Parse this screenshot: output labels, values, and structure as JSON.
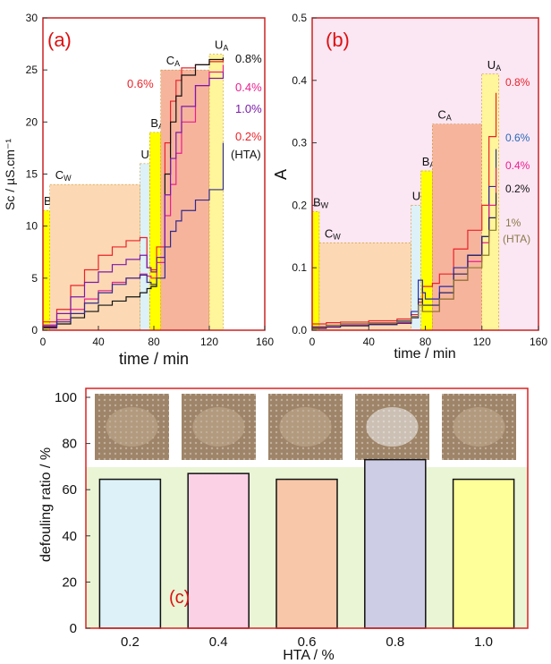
{
  "colors": {
    "panel_a_border": "#cc2222",
    "panel_b_border": "#cc2222",
    "panel_c_border": "#dd2222",
    "panel_b_bg": "#fbe6f3",
    "panel_c_bg": "#eaf5d6",
    "stage_yellow": "#ffff00",
    "stage_pale_yellow": "#fff59a",
    "stage_peach": "#fcd9b4",
    "stage_salmon": "#f7b49d",
    "stage_lightblue": "#ddf1f8",
    "panel_label": "#dd1111"
  },
  "chart_data": [
    {
      "id": "a",
      "type": "line",
      "panel_label": "(a)",
      "xlabel": "time / min",
      "ylabel": "Sc / µS.cm⁻¹",
      "xlim": [
        0,
        160
      ],
      "ylim": [
        0,
        30
      ],
      "xticks": [
        0,
        40,
        80,
        120,
        160
      ],
      "yticks": [
        0,
        5,
        10,
        15,
        20,
        25,
        30
      ],
      "stages": [
        {
          "label": "B",
          "sub": "W",
          "x0": 0,
          "x1": 5,
          "y": 11.5,
          "color": "stage_yellow"
        },
        {
          "label": "C",
          "sub": "W",
          "x0": 5,
          "x1": 70,
          "y": 14,
          "color": "stage_peach"
        },
        {
          "label": "U",
          "sub": "W",
          "x0": 70,
          "x1": 77,
          "y": 16,
          "color": "stage_lightblue"
        },
        {
          "label": "B",
          "sub": "A",
          "x0": 77,
          "x1": 85,
          "y": 19,
          "color": "stage_yellow"
        },
        {
          "label": "C",
          "sub": "A",
          "x0": 85,
          "x1": 120,
          "y": 25,
          "color": "stage_salmon"
        },
        {
          "label": "U",
          "sub": "A",
          "x0": 120,
          "x1": 130,
          "y": 26.5,
          "color": "stage_pale_yellow"
        }
      ],
      "series": [
        {
          "name": "0.6%",
          "color": "#e8232a",
          "x": [
            0,
            10,
            20,
            30,
            40,
            50,
            60,
            70,
            75,
            78,
            82,
            88,
            92,
            96,
            100,
            110,
            120,
            130
          ],
          "y": [
            0.8,
            2.0,
            4.3,
            5.8,
            7.2,
            8.0,
            8.6,
            8.9,
            6.0,
            5.8,
            8.0,
            18.0,
            22.0,
            24.0,
            25.2,
            25.5,
            25.8,
            26.0
          ]
        },
        {
          "name": "0.8%",
          "color": "#111111",
          "x": [
            0,
            10,
            20,
            30,
            40,
            50,
            60,
            70,
            75,
            78,
            82,
            88,
            92,
            96,
            100,
            110,
            120,
            130
          ],
          "y": [
            0.3,
            0.6,
            1.2,
            1.8,
            2.4,
            2.8,
            3.2,
            3.6,
            4.0,
            4.2,
            7.0,
            15.0,
            20.0,
            22.5,
            24.5,
            25.5,
            26.0,
            26.2
          ]
        },
        {
          "name": "0.4%",
          "color": "#e8208f",
          "x": [
            0,
            10,
            20,
            30,
            40,
            50,
            60,
            70,
            75,
            78,
            82,
            88,
            92,
            96,
            100,
            110,
            120,
            130
          ],
          "y": [
            0.4,
            1.0,
            2.0,
            3.0,
            3.8,
            4.6,
            5.0,
            5.4,
            5.2,
            5.0,
            6.5,
            11.0,
            14.0,
            17.0,
            20.0,
            23.5,
            24.8,
            25.5
          ]
        },
        {
          "name": "1.0%",
          "color": "#7a1aa8",
          "x": [
            0,
            10,
            20,
            30,
            40,
            50,
            60,
            70,
            75,
            78,
            82,
            88,
            92,
            96,
            100,
            110,
            120,
            130
          ],
          "y": [
            0.5,
            1.6,
            3.2,
            4.6,
            5.6,
            6.3,
            6.8,
            7.2,
            6.0,
            5.6,
            7.0,
            13.0,
            16.5,
            19.0,
            21.5,
            23.5,
            24.2,
            24.8
          ]
        },
        {
          "name": "0.2% (HTA)",
          "color": "#302a8a",
          "x": [
            0,
            10,
            20,
            30,
            40,
            50,
            60,
            70,
            75,
            78,
            82,
            88,
            92,
            96,
            100,
            110,
            120,
            130
          ],
          "y": [
            0.2,
            0.8,
            1.6,
            2.6,
            3.6,
            4.4,
            5.0,
            5.3,
            4.6,
            4.4,
            5.0,
            8.0,
            9.5,
            10.5,
            11.5,
            12.5,
            13.5,
            18.0
          ]
        }
      ],
      "annotations": [
        {
          "text": "0.8%",
          "color": "#111111"
        },
        {
          "text": "0.6%",
          "color": "#e8232a"
        },
        {
          "text": "0.4%",
          "color": "#e8208f"
        },
        {
          "text": "1.0%",
          "color": "#7a1aa8"
        },
        {
          "text": "0.2%",
          "color": "#e8232a"
        },
        {
          "text": "(HTA)",
          "color": "#111111"
        }
      ]
    },
    {
      "id": "b",
      "type": "line",
      "panel_label": "(b)",
      "xlabel": "time / min",
      "ylabel": "A",
      "xlim": [
        0,
        160
      ],
      "ylim": [
        0,
        0.5
      ],
      "xticks": [
        0,
        40,
        80,
        120,
        160
      ],
      "yticks": [
        0.0,
        0.1,
        0.2,
        0.3,
        0.4,
        0.5
      ],
      "stages": [
        {
          "label": "B",
          "sub": "W",
          "x0": 0,
          "x1": 5,
          "y": 0.19,
          "color": "stage_yellow"
        },
        {
          "label": "C",
          "sub": "W",
          "x0": 5,
          "x1": 70,
          "y": 0.14,
          "color": "stage_peach"
        },
        {
          "label": "U",
          "sub": "W",
          "x0": 70,
          "x1": 77,
          "y": 0.2,
          "color": "stage_lightblue"
        },
        {
          "label": "B",
          "sub": "A",
          "x0": 77,
          "x1": 85,
          "y": 0.255,
          "color": "stage_yellow"
        },
        {
          "label": "C",
          "sub": "A",
          "x0": 85,
          "x1": 120,
          "y": 0.33,
          "color": "stage_salmon"
        },
        {
          "label": "U",
          "sub": "A",
          "x0": 120,
          "x1": 132,
          "y": 0.41,
          "color": "stage_pale_yellow"
        }
      ],
      "series": [
        {
          "name": "0.8%",
          "color": "#e8232a",
          "x": [
            0,
            10,
            20,
            40,
            60,
            70,
            75,
            78,
            80,
            85,
            90,
            100,
            110,
            120,
            125,
            130
          ],
          "y": [
            0.01,
            0.012,
            0.013,
            0.015,
            0.018,
            0.025,
            0.045,
            0.07,
            0.07,
            0.075,
            0.09,
            0.13,
            0.16,
            0.2,
            0.31,
            0.38
          ]
        },
        {
          "name": "0.6%",
          "color": "#2a2aa8",
          "x": [
            0,
            10,
            20,
            40,
            60,
            70,
            75,
            78,
            80,
            85,
            90,
            100,
            110,
            120,
            125,
            130
          ],
          "y": [
            0.005,
            0.008,
            0.01,
            0.012,
            0.015,
            0.03,
            0.08,
            0.06,
            0.05,
            0.05,
            0.07,
            0.1,
            0.12,
            0.15,
            0.23,
            0.29
          ]
        },
        {
          "name": "0.4%",
          "color": "#e8208f",
          "x": [
            0,
            10,
            20,
            40,
            60,
            70,
            75,
            78,
            80,
            85,
            90,
            100,
            110,
            120,
            125,
            130
          ],
          "y": [
            0.004,
            0.006,
            0.008,
            0.01,
            0.012,
            0.02,
            0.04,
            0.03,
            0.03,
            0.03,
            0.05,
            0.08,
            0.11,
            0.14,
            0.2,
            0.26
          ]
        },
        {
          "name": "0.2%",
          "color": "#222266",
          "x": [
            0,
            10,
            20,
            40,
            60,
            70,
            75,
            78,
            80,
            85,
            90,
            100,
            110,
            120,
            125,
            130
          ],
          "y": [
            0.003,
            0.005,
            0.007,
            0.009,
            0.011,
            0.02,
            0.05,
            0.04,
            0.04,
            0.04,
            0.06,
            0.09,
            0.12,
            0.15,
            0.18,
            0.22
          ]
        },
        {
          "name": "1% (HTA)",
          "color": "#8a7a2a",
          "x": [
            0,
            10,
            20,
            40,
            60,
            70,
            75,
            78,
            80,
            85,
            90,
            100,
            110,
            120,
            125,
            130
          ],
          "y": [
            0.006,
            0.008,
            0.01,
            0.012,
            0.014,
            0.022,
            0.04,
            0.03,
            0.03,
            0.03,
            0.05,
            0.08,
            0.1,
            0.12,
            0.16,
            0.2
          ]
        }
      ],
      "annotations": [
        {
          "text": "0.8%",
          "color": "#e8232a"
        },
        {
          "text": "0.6%",
          "color": "#2a6ab8"
        },
        {
          "text": "0.4%",
          "color": "#e8208f"
        },
        {
          "text": "0.2%",
          "color": "#111111"
        },
        {
          "text": "1%",
          "color": "#8a7a4a"
        },
        {
          "text": "(HTA)",
          "color": "#8a7a4a"
        }
      ]
    },
    {
      "id": "c",
      "type": "bar",
      "panel_label": "(c)",
      "xlabel": "HTA / %",
      "ylabel": "defouling  ratio / %",
      "categories": [
        "0.2",
        "0.4",
        "0.6",
        "0.8",
        "1.0"
      ],
      "values": [
        64.5,
        67,
        64.5,
        73,
        64.5
      ],
      "bar_colors": [
        "#ddf1f8",
        "#fbd1e6",
        "#f8c6a8",
        "#cdcde6",
        "#ffff99"
      ],
      "ylim": [
        0,
        100
      ],
      "yticks": [
        0,
        20,
        40,
        60,
        80,
        100
      ],
      "grid": false,
      "inset_photos": 5
    }
  ]
}
